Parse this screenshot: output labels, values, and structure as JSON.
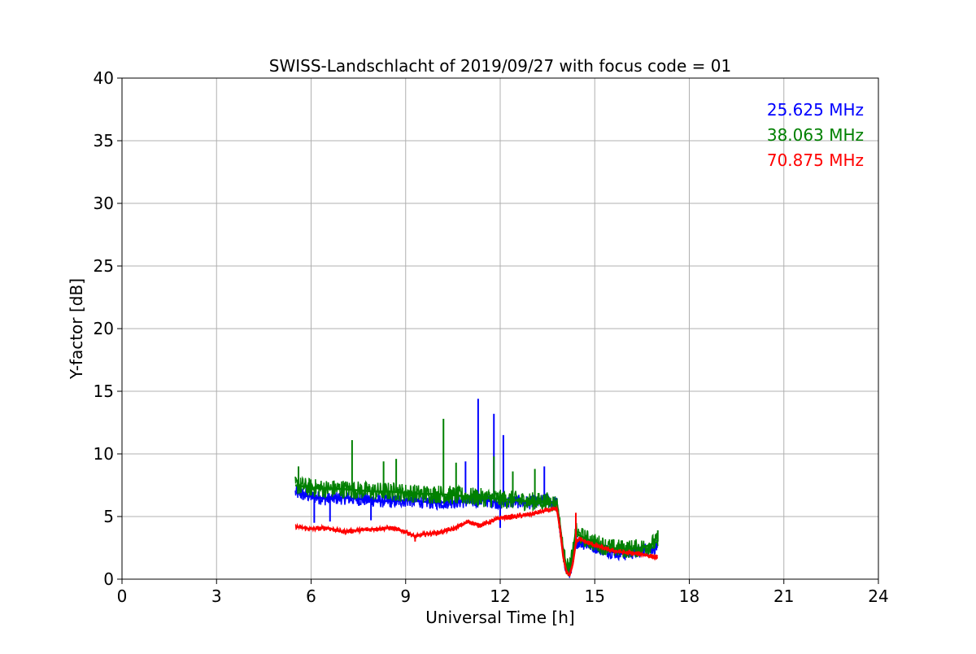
{
  "chart_data": {
    "type": "line",
    "title": "SWISS-Landschlacht of 2019/09/27 with focus code = 01",
    "xlabel": "Universal Time [h]",
    "ylabel": "Y-factor [dB]",
    "xlim": [
      0,
      24
    ],
    "ylim": [
      0,
      40
    ],
    "xticks": [
      0,
      3,
      6,
      9,
      12,
      15,
      18,
      21,
      24
    ],
    "yticks": [
      0,
      5,
      10,
      15,
      20,
      25,
      30,
      35,
      40
    ],
    "grid": true,
    "legend_position": "top-right",
    "series": [
      {
        "name": "25.625 MHz",
        "color": "#0000ff",
        "x": [
          5.5,
          6.0,
          6.5,
          7.0,
          7.5,
          8.0,
          8.5,
          9.0,
          9.5,
          10.0,
          10.5,
          11.0,
          11.5,
          12.0,
          12.5,
          13.0,
          13.5,
          13.8,
          13.9,
          14.0,
          14.1,
          14.2,
          14.3,
          14.4,
          14.5,
          15.0,
          15.5,
          16.0,
          16.5,
          17.0
        ],
        "y": [
          6.9,
          6.6,
          6.4,
          6.5,
          6.4,
          6.3,
          6.2,
          6.3,
          6.2,
          6.1,
          6.2,
          6.2,
          6.3,
          6.1,
          6.2,
          6.1,
          6.3,
          6.0,
          4.0,
          2.0,
          0.7,
          0.4,
          1.5,
          3.0,
          3.0,
          2.6,
          2.2,
          2.0,
          2.3,
          2.6
        ],
        "spikes": [
          [
            6.1,
            4.5
          ],
          [
            6.6,
            4.6
          ],
          [
            7.9,
            4.7
          ],
          [
            10.9,
            9.4
          ],
          [
            11.3,
            14.4
          ],
          [
            11.8,
            13.2
          ],
          [
            12.1,
            11.5
          ],
          [
            12.0,
            4.1
          ],
          [
            13.4,
            9.0
          ]
        ]
      },
      {
        "name": "38.063 MHz",
        "color": "#008000",
        "x": [
          5.5,
          6.0,
          6.5,
          7.0,
          7.5,
          8.0,
          8.5,
          9.0,
          9.5,
          10.0,
          10.5,
          11.0,
          11.5,
          12.0,
          12.5,
          13.0,
          13.5,
          13.8,
          13.9,
          14.0,
          14.1,
          14.2,
          14.3,
          14.4,
          14.5,
          15.0,
          15.5,
          16.0,
          16.5,
          17.0
        ],
        "y": [
          7.5,
          7.3,
          7.2,
          7.2,
          7.1,
          7.0,
          7.0,
          6.9,
          6.8,
          6.8,
          6.7,
          6.6,
          6.5,
          6.4,
          6.3,
          6.2,
          6.2,
          6.0,
          4.2,
          2.2,
          1.0,
          0.9,
          2.0,
          3.8,
          3.5,
          2.9,
          2.5,
          2.4,
          2.5,
          3.0
        ],
        "spikes": [
          [
            5.6,
            9.0
          ],
          [
            7.3,
            11.1
          ],
          [
            8.3,
            9.4
          ],
          [
            8.7,
            9.6
          ],
          [
            10.2,
            12.8
          ],
          [
            10.6,
            9.3
          ],
          [
            11.8,
            9.8
          ],
          [
            12.4,
            8.6
          ],
          [
            13.1,
            8.8
          ],
          [
            17.0,
            3.9
          ]
        ]
      },
      {
        "name": "70.875 MHz",
        "color": "#ff0000",
        "x": [
          5.5,
          6.0,
          6.5,
          7.0,
          7.5,
          8.0,
          8.5,
          9.0,
          9.3,
          9.6,
          10.0,
          10.5,
          11.0,
          11.3,
          11.6,
          12.0,
          12.5,
          13.0,
          13.5,
          13.8,
          13.9,
          14.0,
          14.1,
          14.2,
          14.3,
          14.4,
          14.5,
          15.0,
          15.5,
          16.0,
          16.5,
          17.0
        ],
        "y": [
          4.2,
          4.0,
          4.1,
          3.8,
          3.9,
          4.0,
          4.1,
          3.8,
          3.4,
          3.6,
          3.7,
          4.0,
          4.6,
          4.3,
          4.5,
          4.9,
          5.0,
          5.2,
          5.5,
          5.6,
          4.0,
          1.8,
          0.6,
          0.3,
          1.2,
          2.9,
          3.2,
          2.7,
          2.3,
          2.1,
          2.0,
          1.7
        ],
        "spikes": [
          [
            9.3,
            3.0
          ],
          [
            14.4,
            5.3
          ]
        ]
      }
    ]
  }
}
